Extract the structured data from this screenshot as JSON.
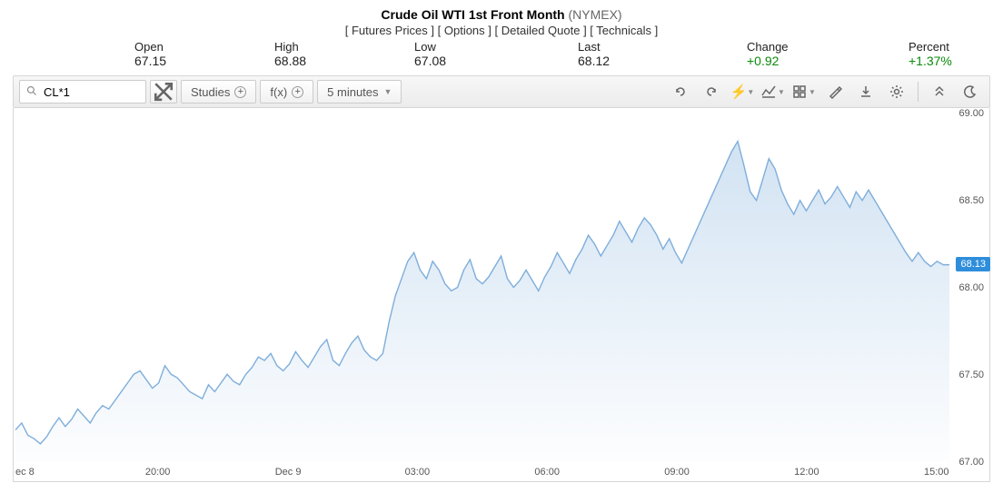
{
  "header": {
    "title": "Crude Oil WTI 1st Front Month",
    "exchange": "(NYMEX)",
    "nav": [
      "Futures Prices",
      "Options",
      "Detailed Quote",
      "Technicals"
    ]
  },
  "stats": {
    "open": {
      "label": "Open",
      "value": "67.15"
    },
    "high": {
      "label": "High",
      "value": "68.88"
    },
    "low": {
      "label": "Low",
      "value": "67.08"
    },
    "last": {
      "label": "Last",
      "value": "68.12"
    },
    "change": {
      "label": "Change",
      "value": "+0.92"
    },
    "percent": {
      "label": "Percent",
      "value": "+1.37%"
    }
  },
  "toolbar": {
    "symbol": "CL*1",
    "studies_label": "Studies",
    "fx_label": "f(x)",
    "interval_label": "5 minutes"
  },
  "chart": {
    "type": "area",
    "line_color": "#7eaedb",
    "fill_top_color": "rgba(126,174,219,0.35)",
    "fill_bottom_color": "rgba(126,174,219,0.02)",
    "background_color": "#ffffff",
    "grid_color": "#eeeeee",
    "axis_text_color": "#555555",
    "line_width": 1.4,
    "price_tag_value": "68.13",
    "price_tag_bg": "#2f8edb",
    "y_axis": {
      "min": 67.0,
      "max": 69.0,
      "ticks": [
        67.0,
        67.5,
        68.0,
        68.5,
        69.0
      ]
    },
    "x_axis": {
      "ticks": [
        {
          "pos": 0.015,
          "label": "ec 8"
        },
        {
          "pos": 0.181,
          "label": "20:00"
        },
        {
          "pos": 0.354,
          "label": "Dec 9"
        },
        {
          "pos": 0.526,
          "label": "03:00"
        },
        {
          "pos": 0.698,
          "label": "06:00"
        },
        {
          "pos": 0.87,
          "label": "09:00"
        }
      ],
      "extra_ticks": [
        {
          "pos": 0.687,
          "label": "09:00"
        },
        {
          "pos": 0.86,
          "label": "12:00"
        },
        {
          "pos": 0.974,
          "label": "15:00"
        }
      ]
    },
    "series": [
      67.18,
      67.22,
      67.15,
      67.13,
      67.1,
      67.14,
      67.2,
      67.25,
      67.2,
      67.24,
      67.3,
      67.26,
      67.22,
      67.28,
      67.32,
      67.3,
      67.35,
      67.4,
      67.45,
      67.5,
      67.52,
      67.47,
      67.42,
      67.45,
      67.55,
      67.5,
      67.48,
      67.44,
      67.4,
      67.38,
      67.36,
      67.44,
      67.4,
      67.45,
      67.5,
      67.46,
      67.44,
      67.5,
      67.54,
      67.6,
      67.58,
      67.62,
      67.55,
      67.52,
      67.56,
      67.63,
      67.58,
      67.54,
      67.6,
      67.66,
      67.7,
      67.58,
      67.55,
      67.62,
      67.68,
      67.72,
      67.64,
      67.6,
      67.58,
      67.62,
      67.8,
      67.95,
      68.05,
      68.15,
      68.2,
      68.1,
      68.05,
      68.15,
      68.1,
      68.02,
      67.98,
      68.0,
      68.1,
      68.16,
      68.05,
      68.02,
      68.06,
      68.12,
      68.18,
      68.05,
      68.0,
      68.04,
      68.1,
      68.04,
      67.98,
      68.06,
      68.12,
      68.2,
      68.14,
      68.08,
      68.16,
      68.22,
      68.3,
      68.25,
      68.18,
      68.24,
      68.3,
      68.38,
      68.32,
      68.26,
      68.34,
      68.4,
      68.36,
      68.3,
      68.22,
      68.28,
      68.2,
      68.14,
      68.22,
      68.3,
      68.38,
      68.46,
      68.54,
      68.62,
      68.7,
      68.78,
      68.84,
      68.7,
      68.55,
      68.5,
      68.62,
      68.74,
      68.68,
      68.56,
      68.48,
      68.42,
      68.5,
      68.44,
      68.5,
      68.56,
      68.48,
      68.52,
      68.58,
      68.52,
      68.46,
      68.55,
      68.5,
      68.56,
      68.5,
      68.44,
      68.38,
      68.32,
      68.26,
      68.2,
      68.15,
      68.2,
      68.15,
      68.12,
      68.15,
      68.13,
      68.13
    ]
  }
}
